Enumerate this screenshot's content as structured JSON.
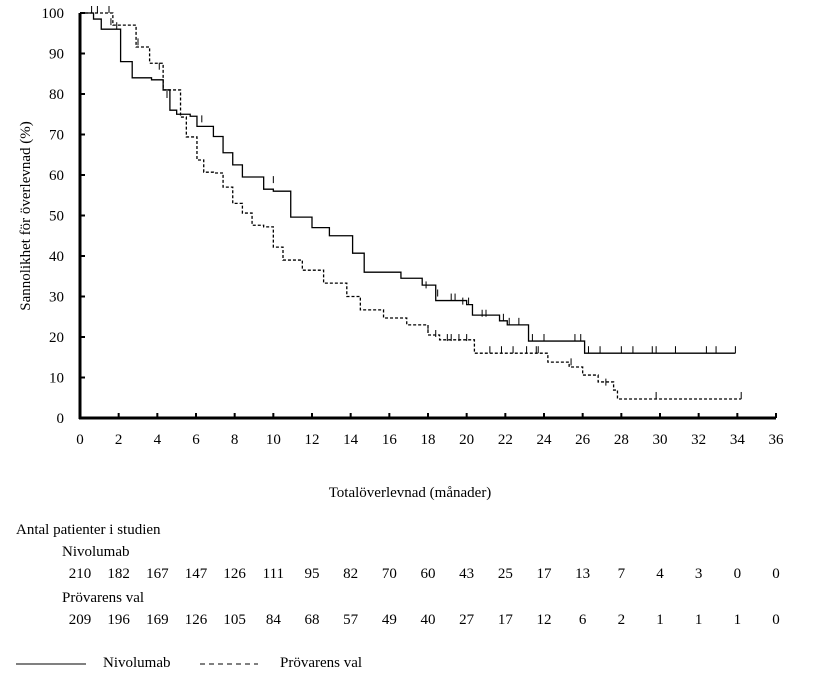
{
  "chart_data": {
    "type": "line",
    "subtype": "kaplan-meier",
    "xlabel": "Totalöverlevnad (månader)",
    "ylabel": "Sannolikhet för överlevnad (%)",
    "xlim": [
      0,
      36
    ],
    "ylim": [
      0,
      100
    ],
    "xticks": [
      0,
      2,
      4,
      6,
      8,
      10,
      12,
      14,
      16,
      18,
      20,
      22,
      24,
      26,
      28,
      30,
      32,
      34,
      36
    ],
    "yticks": [
      0,
      10,
      20,
      30,
      40,
      50,
      60,
      70,
      80,
      90,
      100
    ],
    "grid": false,
    "series": [
      {
        "name": "Nivolumab",
        "style": "solid",
        "color": "#000000",
        "points": [
          [
            0,
            100
          ],
          [
            0.7,
            98.5
          ],
          [
            1.1,
            96
          ],
          [
            2.1,
            88
          ],
          [
            2.7,
            84
          ],
          [
            3.7,
            83.5
          ],
          [
            4.3,
            81
          ],
          [
            4.65,
            76
          ],
          [
            5,
            75
          ],
          [
            5.7,
            74.5
          ],
          [
            6.05,
            72
          ],
          [
            6.9,
            69.5
          ],
          [
            7.4,
            65.5
          ],
          [
            7.9,
            62.5
          ],
          [
            8.4,
            59.5
          ],
          [
            9.5,
            56.5
          ],
          [
            10,
            56
          ],
          [
            10.9,
            49.6
          ],
          [
            12,
            47
          ],
          [
            12.9,
            45
          ],
          [
            14.1,
            40.7
          ],
          [
            14.7,
            36
          ],
          [
            16.6,
            34.5
          ],
          [
            17.7,
            32.8
          ],
          [
            18.4,
            29
          ],
          [
            20,
            28
          ],
          [
            20.3,
            25.4
          ],
          [
            21.7,
            24
          ],
          [
            22.1,
            23
          ],
          [
            22.9,
            23
          ],
          [
            23.2,
            19
          ],
          [
            26,
            19
          ],
          [
            26.1,
            16
          ],
          [
            33.9,
            16
          ]
        ],
        "censored": [
          [
            1.6,
            97
          ],
          [
            1.9,
            96
          ],
          [
            4.5,
            79
          ],
          [
            6.3,
            73
          ],
          [
            10,
            58
          ],
          [
            17.9,
            32
          ],
          [
            18.5,
            30
          ],
          [
            19.2,
            29
          ],
          [
            19.4,
            29
          ],
          [
            19.8,
            28
          ],
          [
            20.1,
            28
          ],
          [
            20.8,
            25
          ],
          [
            21.0,
            25
          ],
          [
            21.9,
            24
          ],
          [
            22.2,
            23
          ],
          [
            22.7,
            23
          ],
          [
            23.4,
            19
          ],
          [
            24,
            19
          ],
          [
            25.6,
            19
          ],
          [
            25.9,
            19
          ],
          [
            26.3,
            16
          ],
          [
            26.9,
            16
          ],
          [
            28,
            16
          ],
          [
            28.6,
            16
          ],
          [
            29.6,
            16
          ],
          [
            29.8,
            16
          ],
          [
            30.8,
            16
          ],
          [
            32.4,
            16
          ],
          [
            32.9,
            16
          ],
          [
            33.9,
            16
          ]
        ]
      },
      {
        "name": "Prövarens val",
        "style": "dashed",
        "color": "#000000",
        "points": [
          [
            0,
            100
          ],
          [
            1.7,
            97
          ],
          [
            2.9,
            91.6
          ],
          [
            3.6,
            87.6
          ],
          [
            4.3,
            81
          ],
          [
            5.2,
            74.3
          ],
          [
            5.5,
            69.4
          ],
          [
            6.05,
            63.7
          ],
          [
            6.4,
            60.7
          ],
          [
            6.9,
            60.5
          ],
          [
            7.4,
            57
          ],
          [
            7.9,
            53
          ],
          [
            8.4,
            50.6
          ],
          [
            8.9,
            47.6
          ],
          [
            9.5,
            47.2
          ],
          [
            10,
            42.2
          ],
          [
            10.5,
            39
          ],
          [
            11.5,
            36.5
          ],
          [
            12.6,
            33.3
          ],
          [
            13.8,
            30
          ],
          [
            14.5,
            26.7
          ],
          [
            15.7,
            24.7
          ],
          [
            16.9,
            23
          ],
          [
            18,
            20.5
          ],
          [
            18.6,
            19.3
          ],
          [
            20.2,
            19.3
          ],
          [
            20.4,
            16
          ],
          [
            23.1,
            16
          ],
          [
            24.2,
            13.8
          ],
          [
            25.3,
            12.6
          ],
          [
            26,
            10.6
          ],
          [
            26.8,
            8.9
          ],
          [
            27.6,
            6.9
          ],
          [
            27.8,
            4.7
          ],
          [
            34.2,
            4.7
          ]
        ],
        "censored": [
          [
            0.6,
            100
          ],
          [
            0.9,
            100
          ],
          [
            1.5,
            100
          ],
          [
            3,
            92
          ],
          [
            4.1,
            86
          ],
          [
            18,
            21
          ],
          [
            18.4,
            20
          ],
          [
            19,
            19
          ],
          [
            19.2,
            19
          ],
          [
            19.6,
            19
          ],
          [
            20,
            19
          ],
          [
            21.2,
            16
          ],
          [
            21.8,
            16
          ],
          [
            22.4,
            16
          ],
          [
            23.1,
            16
          ],
          [
            23.6,
            16
          ],
          [
            23.7,
            16
          ],
          [
            25.4,
            13
          ],
          [
            27.2,
            8
          ],
          [
            29.8,
            4.7
          ],
          [
            34.2,
            4.7
          ]
        ]
      }
    ],
    "legend": "bottom-left"
  },
  "risk_table": {
    "title": "Antal patienter i studien",
    "rows": [
      {
        "label": "Nivolumab",
        "values": [
          "210",
          "182",
          "167",
          "147",
          "126",
          "111",
          "95",
          "82",
          "70",
          "60",
          "43",
          "25",
          "17",
          "13",
          "7",
          "4",
          "3",
          "0",
          "0"
        ]
      },
      {
        "label": "Prövarens val",
        "values": [
          "209",
          "196",
          "169",
          "126",
          "105",
          "84",
          "68",
          "57",
          "49",
          "40",
          "27",
          "17",
          "12",
          "6",
          "2",
          "1",
          "1",
          "1",
          "0"
        ]
      }
    ]
  },
  "legend": {
    "items": [
      {
        "label": "Nivolumab",
        "style": "solid"
      },
      {
        "label": "Prövarens val",
        "style": "dashed"
      }
    ]
  }
}
